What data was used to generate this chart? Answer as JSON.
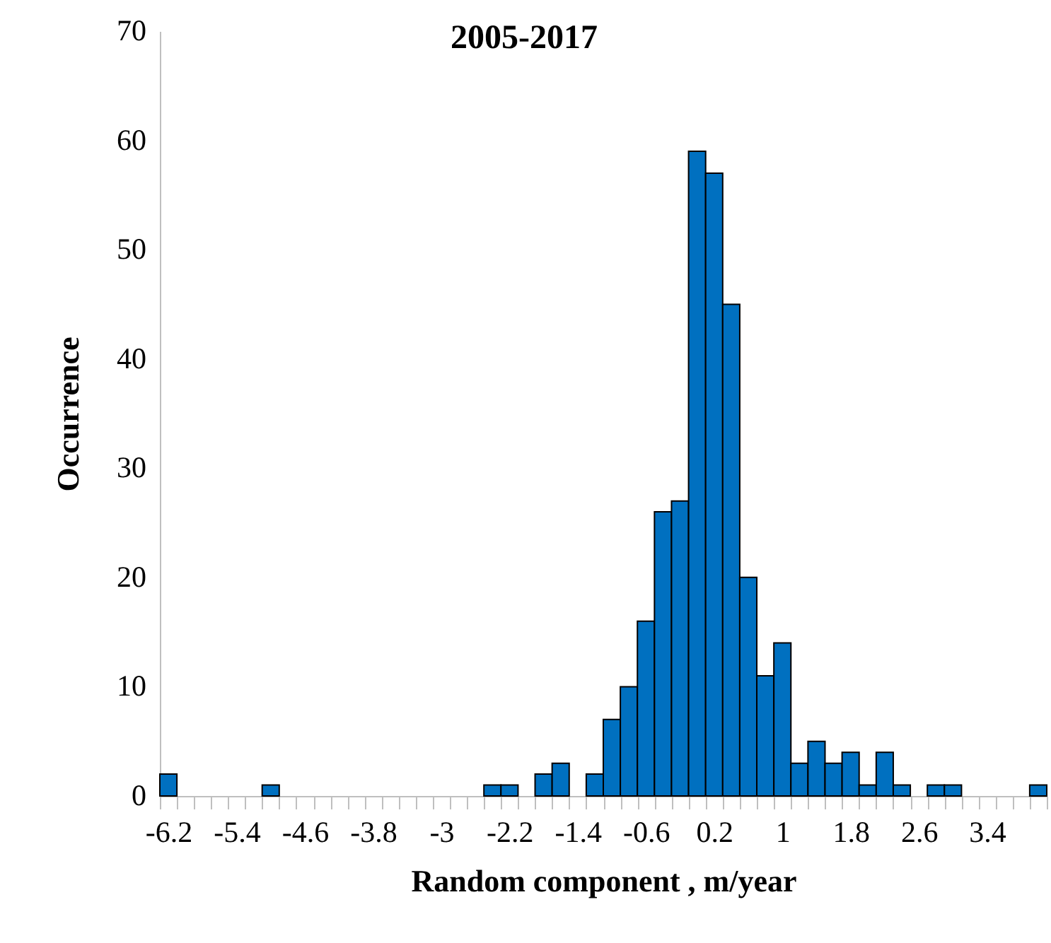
{
  "chart_data": {
    "type": "bar",
    "title": "2005-2017",
    "xlabel": "Random component , m/year",
    "ylabel": "Occurrence",
    "categories": [
      "-6.2",
      null,
      null,
      null,
      "-5.4",
      null,
      null,
      null,
      "-4.6",
      null,
      null,
      null,
      "-3.8",
      null,
      null,
      null,
      "-3",
      null,
      null,
      null,
      "-2.2",
      null,
      null,
      null,
      "-1.4",
      null,
      null,
      null,
      "-0.6",
      null,
      null,
      null,
      "0.2",
      null,
      null,
      null,
      "1",
      null,
      null,
      null,
      "1.8",
      null,
      null,
      null,
      "2.6",
      null,
      null,
      null,
      "3.4",
      null,
      null,
      null
    ],
    "values": [
      2,
      0,
      0,
      0,
      0,
      0,
      1,
      0,
      0,
      0,
      0,
      0,
      0,
      0,
      0,
      0,
      0,
      0,
      0,
      1,
      1,
      0,
      2,
      3,
      0,
      2,
      7,
      10,
      16,
      26,
      27,
      59,
      57,
      45,
      20,
      11,
      14,
      3,
      5,
      3,
      4,
      1,
      4,
      1,
      0,
      1,
      1,
      0,
      0,
      0,
      0,
      1
    ],
    "color": "#0070c0",
    "ylim": [
      0,
      70
    ],
    "yticks": [
      0,
      10,
      20,
      30,
      40,
      50,
      60,
      70
    ],
    "grid": false
  }
}
